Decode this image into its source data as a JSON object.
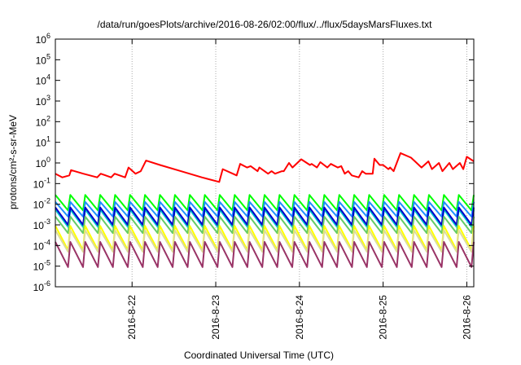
{
  "chart_data": {
    "type": "line",
    "title": "/data/run/goesPlots/archive/2016-08-26/02:00/flux/../flux/5daysMarsFluxes.txt",
    "xlabel": "Coordinated Universal Time (UTC)",
    "ylabel": "protons/cm²-s-sr-MeV",
    "yscale": "log",
    "ylim": [
      1e-06,
      1000000.0
    ],
    "yticks": [
      {
        "base": "10",
        "exp": "-6",
        "value": 1e-06
      },
      {
        "base": "10",
        "exp": "-5",
        "value": 1e-05
      },
      {
        "base": "10",
        "exp": "-4",
        "value": 0.0001
      },
      {
        "base": "10",
        "exp": "-3",
        "value": 0.001
      },
      {
        "base": "10",
        "exp": "-2",
        "value": 0.01
      },
      {
        "base": "10",
        "exp": "-1",
        "value": 0.1
      },
      {
        "base": "10",
        "exp": "0",
        "value": 1
      },
      {
        "base": "10",
        "exp": "1",
        "value": 10
      },
      {
        "base": "10",
        "exp": "2",
        "value": 100
      },
      {
        "base": "10",
        "exp": "3",
        "value": 1000
      },
      {
        "base": "10",
        "exp": "4",
        "value": 10000
      },
      {
        "base": "10",
        "exp": "5",
        "value": 100000
      },
      {
        "base": "10",
        "exp": "6",
        "value": 1000000
      }
    ],
    "xlim": [
      "2016-08-21 02:00",
      "2016-08-26 02:00"
    ],
    "xticks": [
      "2016-8-22",
      "2016-8-23",
      "2016-8-24",
      "2016-8-25",
      "2016-8-26"
    ],
    "grid": true,
    "legend": "none",
    "series": [
      {
        "color": "#ff0000",
        "x": [
          "2016-08-21 02:00",
          "2016-08-21 04:00",
          "2016-08-21 06:00",
          "2016-08-21 06:30",
          "2016-08-21 10:00",
          "2016-08-21 14:00",
          "2016-08-21 15:00",
          "2016-08-21 18:00",
          "2016-08-21 19:00",
          "2016-08-21 22:00",
          "2016-08-21 23:00",
          "2016-08-22 01:00",
          "2016-08-22 02:30",
          "2016-08-22 04:00",
          "2016-08-22 08:00",
          "2016-08-22 14:00",
          "2016-08-22 20:00",
          "2016-08-23 01:00",
          "2016-08-23 02:00",
          "2016-08-23 06:00",
          "2016-08-23 07:00",
          "2016-08-23 09:00",
          "2016-08-23 10:00",
          "2016-08-23 12:00",
          "2016-08-23 12:30",
          "2016-08-23 15:00",
          "2016-08-23 16:00",
          "2016-08-23 17:00",
          "2016-08-23 19:00",
          "2016-08-23 19:30",
          "2016-08-23 21:00",
          "2016-08-23 22:00",
          "2016-08-24 00:30",
          "2016-08-24 03:00",
          "2016-08-24 03:30",
          "2016-08-24 05:00",
          "2016-08-24 06:00",
          "2016-08-24 08:00",
          "2016-08-24 09:00",
          "2016-08-24 11:00",
          "2016-08-24 12:00",
          "2016-08-24 13:00",
          "2016-08-24 14:00",
          "2016-08-24 15:00",
          "2016-08-24 17:00",
          "2016-08-24 18:00",
          "2016-08-24 19:00",
          "2016-08-24 21:00",
          "2016-08-24 21:30",
          "2016-08-24 23:00",
          "2016-08-25 00:00",
          "2016-08-25 01:30",
          "2016-08-25 02:00",
          "2016-08-25 03:00",
          "2016-08-25 05:00",
          "2016-08-25 08:00",
          "2016-08-25 11:00",
          "2016-08-25 13:00",
          "2016-08-25 14:00",
          "2016-08-25 16:00",
          "2016-08-25 17:00",
          "2016-08-25 19:00",
          "2016-08-25 20:00",
          "2016-08-25 22:00",
          "2016-08-25 23:00",
          "2016-08-26 00:00",
          "2016-08-26 02:00"
        ],
        "y": [
          0.3,
          0.2,
          0.25,
          0.45,
          0.3,
          0.2,
          0.3,
          0.2,
          0.3,
          0.2,
          0.6,
          0.3,
          0.4,
          1.3,
          0.8,
          0.4,
          0.2,
          0.12,
          0.5,
          0.25,
          0.9,
          0.6,
          0.7,
          0.4,
          0.6,
          0.3,
          0.4,
          0.3,
          0.4,
          0.4,
          1.0,
          0.6,
          1.5,
          0.8,
          0.9,
          0.6,
          1.1,
          0.6,
          0.9,
          0.6,
          0.7,
          0.3,
          0.4,
          0.25,
          0.2,
          0.4,
          0.3,
          0.3,
          1.6,
          0.8,
          0.8,
          0.5,
          0.6,
          0.4,
          3.0,
          1.8,
          0.6,
          1.2,
          0.5,
          1.0,
          0.4,
          1.0,
          0.5,
          1.0,
          0.5,
          2.0,
          1.2
        ]
      },
      {
        "color": "#00ff00",
        "base": 0.005,
        "peak": 0.028,
        "cycles": 28
      },
      {
        "color": "#1e90ff",
        "base": 0.0025,
        "peak": 0.013,
        "cycles": 28
      },
      {
        "color": "#00cccc",
        "base": 0.0008,
        "peak": 0.0055,
        "cycles": 28
      },
      {
        "color": "#0000cc",
        "base": 0.001,
        "peak": 0.007,
        "cycles": 28
      },
      {
        "color": "#66cc66",
        "base": 0.0004,
        "peak": 0.0025,
        "cycles": 28
      },
      {
        "color": "#ffff00",
        "base": 6e-05,
        "peak": 0.0009,
        "cycles": 28
      },
      {
        "color": "#dddd99",
        "base": 5e-05,
        "peak": 0.00055,
        "cycles": 28
      },
      {
        "color": "#993366",
        "base": 9e-06,
        "peak": 0.00015,
        "cycles": 28
      }
    ]
  }
}
